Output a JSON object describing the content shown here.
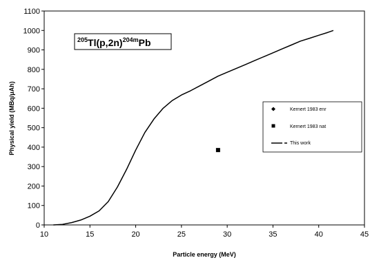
{
  "chart_data": {
    "type": "line",
    "xlabel": "Particle energy (MeV)",
    "ylabel": "Physical yield (MBq/μAh)",
    "xlim": [
      10,
      45
    ],
    "ylim": [
      0,
      1100
    ],
    "xticks": [
      10,
      15,
      20,
      25,
      30,
      35,
      40,
      45
    ],
    "yticks": [
      0,
      100,
      200,
      300,
      400,
      500,
      600,
      700,
      800,
      900,
      1000,
      1100
    ],
    "grid": false,
    "legend_position": "right",
    "annotation": {
      "sup1": "205",
      "base1": "Tl(p,2n)",
      "sup2": "204m",
      "base2": "Pb"
    },
    "series": [
      {
        "name": "Kernert 1983 enr",
        "kind": "scatter",
        "marker": "diamond",
        "x": [],
        "y": []
      },
      {
        "name": "Kernert 1983 nat",
        "kind": "scatter",
        "marker": "square",
        "x": [
          29
        ],
        "y": [
          385
        ]
      },
      {
        "name": "This work",
        "kind": "line",
        "x": [
          11,
          12,
          13,
          14,
          15,
          16,
          17,
          18,
          19,
          20,
          21,
          22,
          23,
          24,
          25,
          26,
          27,
          28,
          29,
          30,
          31,
          32,
          33,
          34,
          35,
          36,
          37,
          38,
          39,
          40,
          41,
          41.6
        ],
        "y": [
          0,
          3,
          12,
          25,
          45,
          72,
          120,
          195,
          285,
          385,
          475,
          545,
          600,
          640,
          668,
          690,
          715,
          740,
          765,
          785,
          805,
          825,
          845,
          865,
          885,
          905,
          925,
          945,
          960,
          975,
          990,
          1000
        ]
      }
    ]
  }
}
